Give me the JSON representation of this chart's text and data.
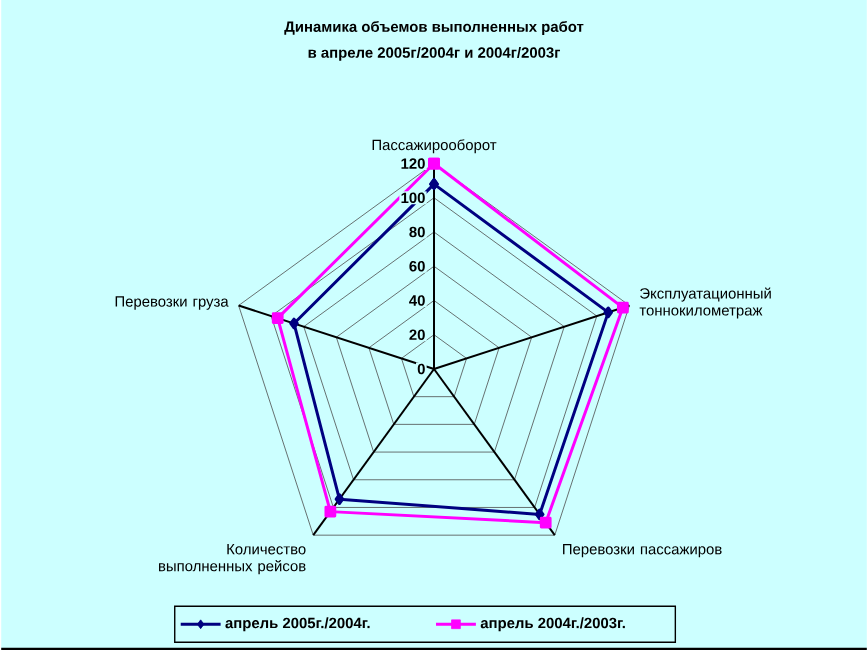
{
  "chart_data": {
    "type": "radar",
    "title": "Динамика объемов выполненных работ",
    "subtitle": "в апреле 2005г/2004г и 2004г/2003г",
    "categories": [
      "Пассажирооборот",
      "Эксплуатационный тоннокилометраж",
      "Перевозки пассажиров",
      "Количество выполненных рейсов",
      "Перевозки груза"
    ],
    "series": [
      {
        "name": "апрель 2005г./2004г.",
        "color": "#000080",
        "marker": "diamond",
        "values": [
          108,
          107,
          105,
          94,
          86
        ]
      },
      {
        "name": "апрель 2004г./2003г.",
        "color": "#ff00ff",
        "marker": "square",
        "values": [
          120,
          116,
          111,
          103,
          96
        ]
      }
    ],
    "ylim": [
      0,
      120
    ],
    "yticks": [
      0,
      20,
      40,
      60,
      80,
      100,
      120
    ],
    "grid": true,
    "legend": "bottom"
  }
}
